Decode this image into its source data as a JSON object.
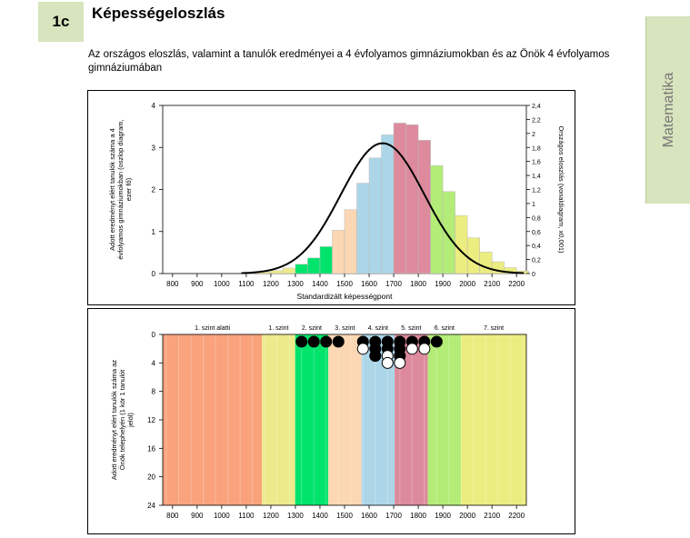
{
  "header": {
    "badge": "1c",
    "title": "Képességeloszlás"
  },
  "subtitle": "Az országos eloszlás, valamint a tanulók eredményei a 4 évfolyamos gimnáziumokban és az Önök 4 évfolyamos gimnáziumában",
  "side_tab": "Matematika",
  "chart_data": [
    {
      "type": "bar",
      "xlabel": "Standardizált képességpont",
      "ylabel_left": "Adott eredményt elért tanulók száma a 4 évfolyamos gimnáziumokban (oszlop diagram, ezer fő)",
      "ylabel_right": "Országos eloszlás (vonaldiagram, x0,001)",
      "x_ticks": [
        "800",
        "900",
        "1000",
        "1100",
        "1200",
        "1300",
        "1400",
        "1500",
        "1600",
        "1700",
        "1800",
        "1900",
        "2000",
        "2100",
        "2200"
      ],
      "y_left_ticks": [
        "0",
        "1",
        "2",
        "3",
        "4"
      ],
      "y_right_ticks": [
        "0",
        "0,2",
        "0,4",
        "0,6",
        "0,8",
        "1",
        "1,2",
        "1,4",
        "1,6",
        "1,8",
        "2",
        "2,2",
        "2,4"
      ],
      "ylim_left": [
        0,
        4
      ],
      "ylim_right": [
        0,
        2.4
      ],
      "bars": [
        {
          "x": 1125,
          "y": 0.02
        },
        {
          "x": 1175,
          "y": 0.04
        },
        {
          "x": 1225,
          "y": 0.07
        },
        {
          "x": 1275,
          "y": 0.13
        },
        {
          "x": 1325,
          "y": 0.22
        },
        {
          "x": 1375,
          "y": 0.37
        },
        {
          "x": 1425,
          "y": 0.64
        },
        {
          "x": 1475,
          "y": 1.03
        },
        {
          "x": 1525,
          "y": 1.52
        },
        {
          "x": 1575,
          "y": 2.15
        },
        {
          "x": 1625,
          "y": 2.75
        },
        {
          "x": 1675,
          "y": 3.3
        },
        {
          "x": 1725,
          "y": 3.58
        },
        {
          "x": 1775,
          "y": 3.54
        },
        {
          "x": 1825,
          "y": 3.17
        },
        {
          "x": 1875,
          "y": 2.57
        },
        {
          "x": 1925,
          "y": 1.95
        },
        {
          "x": 1975,
          "y": 1.38
        },
        {
          "x": 2025,
          "y": 0.85
        },
        {
          "x": 2075,
          "y": 0.51
        },
        {
          "x": 2125,
          "y": 0.28
        },
        {
          "x": 2175,
          "y": 0.14
        },
        {
          "x": 2225,
          "y": 0.06
        }
      ],
      "curve": {
        "mean": 1655,
        "sd": 170,
        "peak": 1.86
      },
      "bands": [
        {
          "name": "1. szint alatti",
          "from": 760,
          "to": 1164,
          "color": "#f9a27c"
        },
        {
          "name": "1. szint",
          "from": 1164,
          "to": 1299,
          "color": "#ecea8a"
        },
        {
          "name": "2. szint",
          "from": 1299,
          "to": 1434,
          "color": "#00e46c"
        },
        {
          "name": "3. szint",
          "from": 1434,
          "to": 1569,
          "color": "#fbd7b3"
        },
        {
          "name": "4. szint",
          "from": 1569,
          "to": 1704,
          "color": "#acd6e8"
        },
        {
          "name": "5. szint",
          "from": 1704,
          "to": 1839,
          "color": "#dc8a9c"
        },
        {
          "name": "6. szint",
          "from": 1839,
          "to": 1974,
          "color": "#b3ec76"
        },
        {
          "name": "7. szint",
          "from": 1974,
          "to": 2240,
          "color": "#eced80"
        }
      ]
    },
    {
      "type": "scatter",
      "ylabel": "Adott eredményt elért tanulók száma az Önök telephelyén (1 kör 1 tanulót jelöl)",
      "x_ticks": [
        "800",
        "900",
        "1000",
        "1100",
        "1200",
        "1300",
        "1400",
        "1500",
        "1600",
        "1700",
        "1800",
        "1900",
        "2000",
        "2100",
        "2200"
      ],
      "y_ticks": [
        "0",
        "4",
        "8",
        "12",
        "16",
        "20",
        "24"
      ],
      "ylim": [
        0,
        24
      ],
      "points": [
        {
          "x": 1325,
          "row": 1,
          "fill": "black"
        },
        {
          "x": 1375,
          "row": 1,
          "fill": "black"
        },
        {
          "x": 1425,
          "row": 1,
          "fill": "black"
        },
        {
          "x": 1475,
          "row": 1,
          "fill": "black"
        },
        {
          "x": 1575,
          "row": 1,
          "fill": "black"
        },
        {
          "x": 1575,
          "row": 2,
          "fill": "white"
        },
        {
          "x": 1625,
          "row": 1,
          "fill": "black"
        },
        {
          "x": 1625,
          "row": 2,
          "fill": "black"
        },
        {
          "x": 1625,
          "row": 3,
          "fill": "black"
        },
        {
          "x": 1675,
          "row": 1,
          "fill": "black"
        },
        {
          "x": 1675,
          "row": 2,
          "fill": "black"
        },
        {
          "x": 1675,
          "row": 3,
          "fill": "white"
        },
        {
          "x": 1675,
          "row": 4,
          "fill": "white"
        },
        {
          "x": 1725,
          "row": 1,
          "fill": "black"
        },
        {
          "x": 1725,
          "row": 2,
          "fill": "black"
        },
        {
          "x": 1725,
          "row": 3,
          "fill": "black"
        },
        {
          "x": 1725,
          "row": 4,
          "fill": "white"
        },
        {
          "x": 1775,
          "row": 1,
          "fill": "black"
        },
        {
          "x": 1775,
          "row": 2,
          "fill": "white"
        },
        {
          "x": 1825,
          "row": 1,
          "fill": "black"
        },
        {
          "x": 1825,
          "row": 2,
          "fill": "white"
        },
        {
          "x": 1875,
          "row": 1,
          "fill": "black"
        }
      ]
    }
  ]
}
